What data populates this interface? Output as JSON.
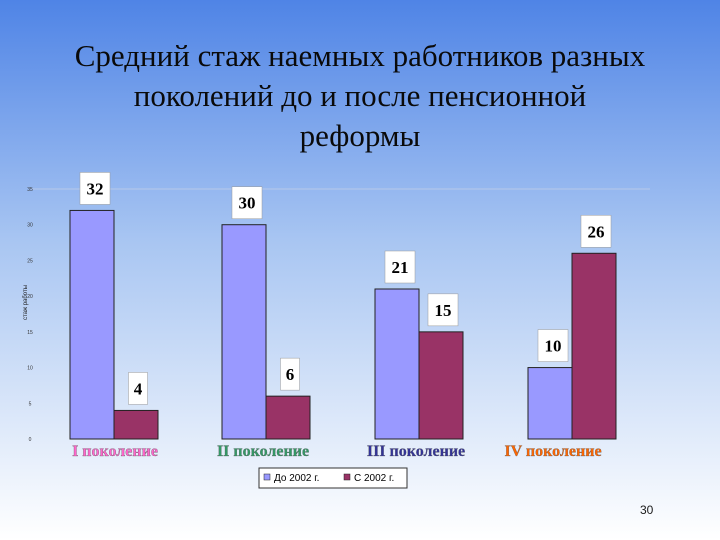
{
  "title": "Средний стаж наемных работников разных\nпоколений  до и после пенсионной\nреформы",
  "slide_number": "30",
  "colors": {
    "before": "#9999ff",
    "after": "#993366",
    "bg_top": "#4f84e6",
    "bg_bottom": "#ffffff"
  },
  "chart_data": {
    "type": "bar",
    "title": "",
    "ylabel": "стаж работы",
    "ylim": [
      0,
      35
    ],
    "yticks": [
      "0",
      "5",
      "10",
      "15",
      "20",
      "25",
      "30",
      "35"
    ],
    "grid": false,
    "legend_position": "bottom",
    "categories": [
      "I поколение",
      "II поколение",
      "III поколение",
      "IV поколение"
    ],
    "category_colors": [
      "#ff66cc",
      "#339966",
      "#333399",
      "#ff6600"
    ],
    "series": [
      {
        "name": "До 2002 г.",
        "color": "#9999ff",
        "values": [
          32,
          30,
          21,
          10
        ]
      },
      {
        "name": "С 2002 г.",
        "color": "#993366",
        "values": [
          4,
          6,
          15,
          26
        ]
      }
    ]
  }
}
